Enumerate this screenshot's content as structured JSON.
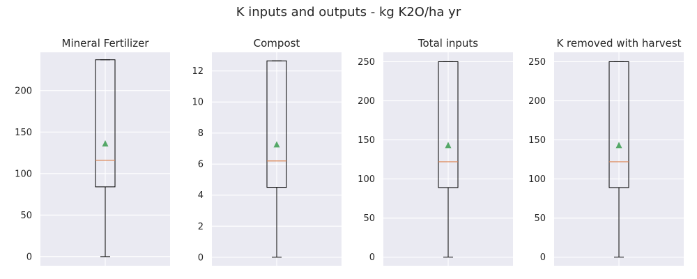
{
  "title": "K inputs and outputs - kg K2O/ha yr",
  "chart_data": [
    {
      "type": "box",
      "title": "Mineral Fertilizer",
      "ylim": [
        -11,
        246
      ],
      "yticks": [
        0,
        50,
        100,
        150,
        200
      ],
      "box": {
        "min": 0,
        "q1": 84,
        "median": 116,
        "mean": 136,
        "q3": 237,
        "max": 237
      }
    },
    {
      "type": "box",
      "title": "Compost",
      "ylim": [
        -0.55,
        13.2
      ],
      "yticks": [
        0,
        2,
        4,
        6,
        8,
        10,
        12
      ],
      "box": {
        "min": 0,
        "q1": 4.5,
        "median": 6.2,
        "mean": 7.25,
        "q3": 12.65,
        "max": 12.65
      }
    },
    {
      "type": "box",
      "title": "Total inputs",
      "ylim": [
        -11,
        262
      ],
      "yticks": [
        0,
        50,
        100,
        150,
        200,
        250
      ],
      "box": {
        "min": 0,
        "q1": 89,
        "median": 122,
        "mean": 143,
        "q3": 250,
        "max": 250
      }
    },
    {
      "type": "box",
      "title": "K removed with harvest",
      "ylim": [
        -11,
        262
      ],
      "yticks": [
        0,
        50,
        100,
        150,
        200,
        250
      ],
      "box": {
        "min": 0,
        "q1": 89,
        "median": 122,
        "mean": 143,
        "q3": 250,
        "max": 250
      }
    }
  ],
  "colors": {
    "axes_bg": "#eaeaf2",
    "grid": "#ffffff",
    "box": "#000000",
    "median": "#dd8452",
    "mean": "#55a868",
    "text": "#262626"
  }
}
